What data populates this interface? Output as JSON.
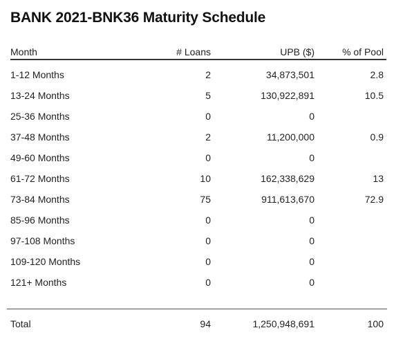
{
  "title": "BANK 2021-BNK36 Maturity Schedule",
  "columns": {
    "month": "Month",
    "loans": "# Loans",
    "upb": "UPB ($)",
    "pct": "% of Pool"
  },
  "rows": [
    {
      "month": "1-12 Months",
      "loans": "2",
      "upb": "34,873,501",
      "pct": "2.8"
    },
    {
      "month": "13-24 Months",
      "loans": "5",
      "upb": "130,922,891",
      "pct": "10.5"
    },
    {
      "month": "25-36 Months",
      "loans": "0",
      "upb": "0",
      "pct": ""
    },
    {
      "month": "37-48 Months",
      "loans": "2",
      "upb": "11,200,000",
      "pct": "0.9"
    },
    {
      "month": "49-60 Months",
      "loans": "0",
      "upb": "0",
      "pct": ""
    },
    {
      "month": "61-72 Months",
      "loans": "10",
      "upb": "162,338,629",
      "pct": "13"
    },
    {
      "month": "73-84 Months",
      "loans": "75",
      "upb": "911,613,670",
      "pct": "72.9"
    },
    {
      "month": "85-96 Months",
      "loans": "0",
      "upb": "0",
      "pct": ""
    },
    {
      "month": "97-108 Months",
      "loans": "0",
      "upb": "0",
      "pct": ""
    },
    {
      "month": "109-120 Months",
      "loans": "0",
      "upb": "0",
      "pct": ""
    },
    {
      "month": "121+ Months",
      "loans": "0",
      "upb": "0",
      "pct": ""
    }
  ],
  "total": {
    "month": "Total",
    "loans": "94",
    "upb": "1,250,948,691",
    "pct": "100"
  }
}
